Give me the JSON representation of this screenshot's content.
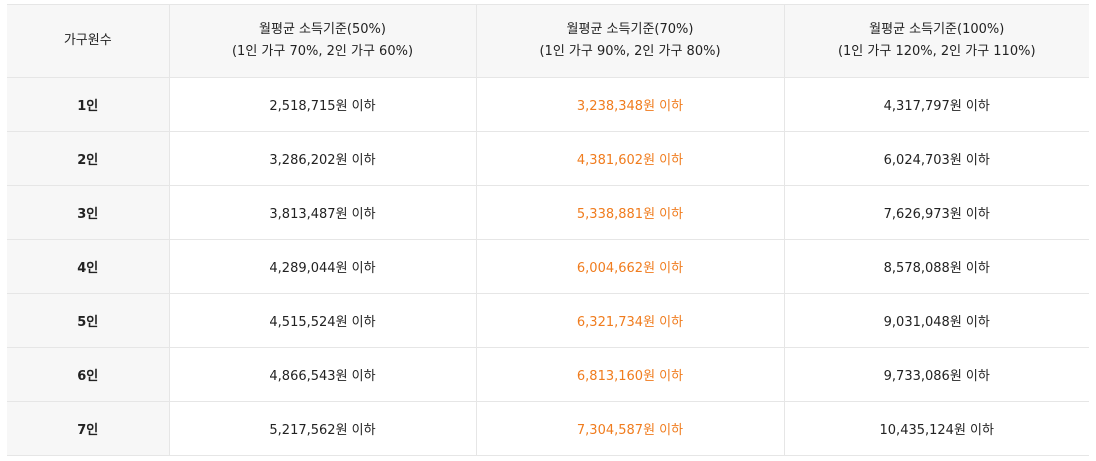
{
  "colors": {
    "highlight": "#f07c1e",
    "header_bg": "#f7f7f7",
    "border": "#e6e6e6"
  },
  "table": {
    "headers": [
      {
        "title": "가구원수",
        "sub": ""
      },
      {
        "title": "월평균 소득기준(50%)",
        "sub": "(1인 가구 70%, 2인 가구 60%)"
      },
      {
        "title": "월평균 소득기준(70%)",
        "sub": "(1인 가구 90%, 2인 가구 80%)"
      },
      {
        "title": "월평균 소득기준(100%)",
        "sub": "(1인 가구 120%, 2인 가구 110%)"
      }
    ],
    "rows": [
      {
        "size": "1인",
        "v50": "2,518,715원 이하",
        "v70": "3,238,348원 이하",
        "v100": "4,317,797원 이하"
      },
      {
        "size": "2인",
        "v50": "3,286,202원 이하",
        "v70": "4,381,602원 이하",
        "v100": "6,024,703원 이하"
      },
      {
        "size": "3인",
        "v50": "3,813,487원 이하",
        "v70": "5,338,881원 이하",
        "v100": "7,626,973원 이하"
      },
      {
        "size": "4인",
        "v50": "4,289,044원 이하",
        "v70": "6,004,662원 이하",
        "v100": "8,578,088원 이하"
      },
      {
        "size": "5인",
        "v50": "4,515,524원 이하",
        "v70": "6,321,734원 이하",
        "v100": "9,031,048원 이하"
      },
      {
        "size": "6인",
        "v50": "4,866,543원 이하",
        "v70": "6,813,160원 이하",
        "v100": "9,733,086원 이하"
      },
      {
        "size": "7인",
        "v50": "5,217,562원 이하",
        "v70": "7,304,587원 이하",
        "v100": "10,435,124원 이하"
      }
    ]
  }
}
